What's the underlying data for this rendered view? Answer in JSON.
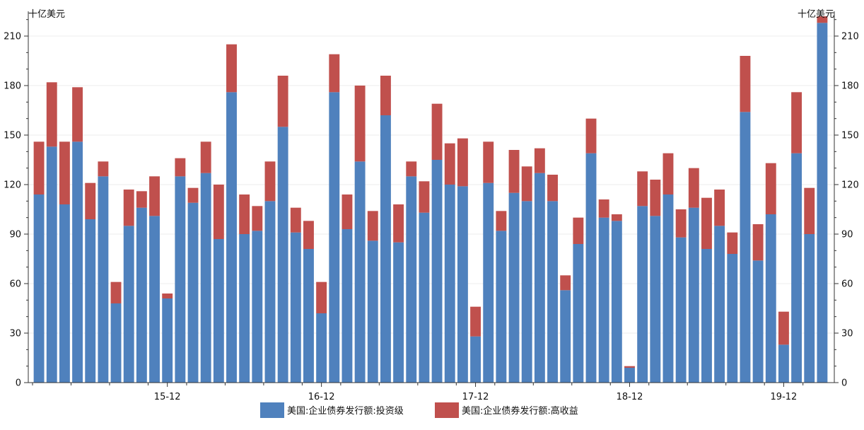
{
  "chart_data": {
    "type": "bar",
    "stacked": true,
    "y_unit_left": "十亿美元",
    "y_unit_right": "十亿美元",
    "ylim": [
      0,
      225
    ],
    "yticks": [
      0,
      30,
      60,
      90,
      120,
      150,
      180,
      210
    ],
    "grid": true,
    "legend_position": "bottom-center",
    "x_tick_labels": [
      {
        "label": "15-12",
        "at_index": 10
      },
      {
        "label": "16-12",
        "at_index": 22
      },
      {
        "label": "17-12",
        "at_index": 34
      },
      {
        "label": "18-12",
        "at_index": 46
      },
      {
        "label": "19-12",
        "at_index": 58
      }
    ],
    "series": [
      {
        "name": "美国:企业债券发行额:投资级",
        "color": "#4f81bd",
        "values": [
          114,
          143,
          108,
          146,
          99,
          125,
          48,
          95,
          106,
          101,
          51,
          125,
          109,
          127,
          87,
          176,
          90,
          92,
          110,
          155,
          91,
          81,
          42,
          176,
          93,
          134,
          86,
          162,
          85,
          125,
          103,
          135,
          120,
          119,
          28,
          121,
          92,
          115,
          110,
          127,
          110,
          56,
          84,
          139,
          100,
          98,
          9,
          107,
          101,
          114,
          88,
          106,
          81,
          95,
          78,
          164,
          74,
          102,
          23,
          139,
          90,
          218
        ]
      },
      {
        "name": "美国:企业债券发行额:高收益",
        "color": "#c0504d",
        "values": [
          32,
          39,
          38,
          33,
          22,
          9,
          13,
          22,
          10,
          24,
          3,
          11,
          9,
          19,
          33,
          29,
          24,
          15,
          24,
          31,
          15,
          17,
          19,
          23,
          21,
          46,
          18,
          24,
          23,
          9,
          19,
          34,
          25,
          29,
          18,
          25,
          12,
          26,
          21,
          15,
          16,
          9,
          16,
          21,
          11,
          4,
          1,
          21,
          22,
          25,
          17,
          24,
          31,
          22,
          13,
          34,
          22,
          31,
          20,
          37,
          28,
          4
        ]
      }
    ]
  }
}
